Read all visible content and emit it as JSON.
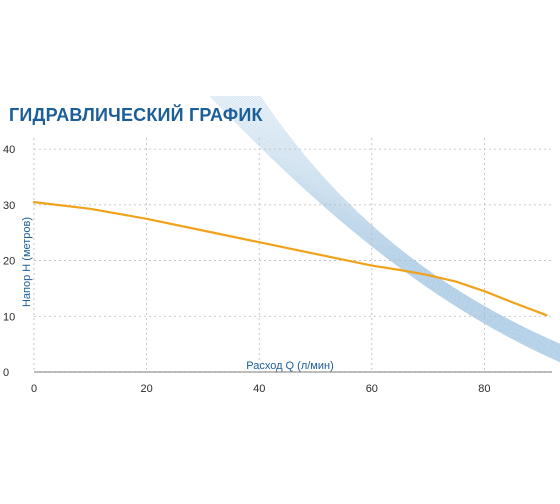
{
  "colors": {
    "title": "#1b5e98",
    "curve": "#f0a21a",
    "grid": "#b9b9b9",
    "swoosh": "#9ec3e0"
  },
  "chart_data": {
    "type": "line",
    "title": "ГИДРАВЛИЧЕСКИЙ ГРАФИК",
    "xlabel": "Расход Q (л/мин)",
    "ylabel": "Напор H (метров)",
    "xlim": [
      0,
      92
    ],
    "ylim": [
      0,
      42
    ],
    "x_ticks": [
      "0",
      "20",
      "40",
      "60",
      "80"
    ],
    "y_ticks": [
      "0",
      "10",
      "20",
      "30",
      "40"
    ],
    "grid": true,
    "series": [
      {
        "x": [
          0,
          10,
          20,
          30,
          40,
          50,
          60,
          65,
          70,
          75,
          80,
          85,
          91
        ],
        "y": [
          30.5,
          29.3,
          27.5,
          25.4,
          23.3,
          21.2,
          19.1,
          18.3,
          17.4,
          16.2,
          14.5,
          12.5,
          10.2
        ]
      }
    ]
  }
}
